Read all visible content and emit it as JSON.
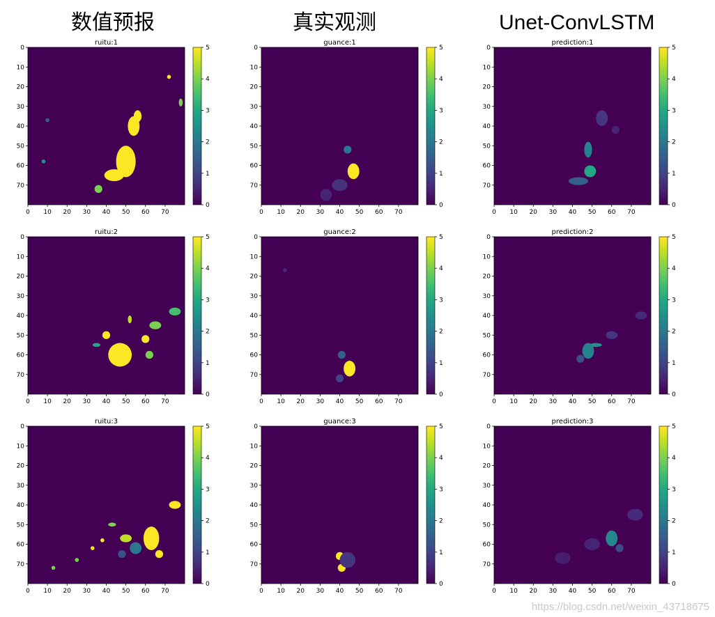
{
  "headers": [
    "数值预报",
    "真实观测",
    "Unet-ConvLSTM"
  ],
  "watermark": "https://blog.csdn.net/weixin_43718675",
  "colors": {
    "cmap": "viridis",
    "dark": "#440154",
    "bright": "#fde725"
  },
  "chart_data": [
    {
      "type": "heatmap",
      "title": "ruitu:1",
      "xticks": [
        0,
        10,
        20,
        30,
        40,
        50,
        60,
        70
      ],
      "yticks": [
        0,
        10,
        20,
        30,
        40,
        50,
        60,
        70
      ],
      "xlim": [
        0,
        80
      ],
      "ylim": [
        80,
        0
      ],
      "colorbar": {
        "min": 0,
        "max": 5,
        "ticks": [
          0,
          1,
          2,
          3,
          4,
          5
        ]
      },
      "blobs": [
        {
          "x": 50,
          "y": 58,
          "rx": 5,
          "ry": 8,
          "v": 5
        },
        {
          "x": 54,
          "y": 40,
          "rx": 3,
          "ry": 5,
          "v": 5
        },
        {
          "x": 44,
          "y": 65,
          "rx": 5,
          "ry": 3,
          "v": 5
        },
        {
          "x": 56,
          "y": 35,
          "rx": 2,
          "ry": 3,
          "v": 5
        },
        {
          "x": 36,
          "y": 72,
          "rx": 2,
          "ry": 2,
          "v": 4
        },
        {
          "x": 78,
          "y": 28,
          "rx": 1,
          "ry": 2,
          "v": 4
        },
        {
          "x": 72,
          "y": 15,
          "rx": 1,
          "ry": 1,
          "v": 5
        },
        {
          "x": 10,
          "y": 37,
          "rx": 1,
          "ry": 1,
          "v": 1.5
        },
        {
          "x": 8,
          "y": 58,
          "rx": 1,
          "ry": 1,
          "v": 2.5
        }
      ]
    },
    {
      "type": "heatmap",
      "title": "guance:1",
      "xticks": [
        0,
        10,
        20,
        30,
        40,
        50,
        60,
        70
      ],
      "yticks": [
        0,
        10,
        20,
        30,
        40,
        50,
        60,
        70
      ],
      "xlim": [
        0,
        80
      ],
      "ylim": [
        80,
        0
      ],
      "colorbar": {
        "min": 0,
        "max": 5,
        "ticks": [
          0,
          1,
          2,
          3,
          4,
          5
        ]
      },
      "blobs": [
        {
          "x": 47,
          "y": 63,
          "rx": 3,
          "ry": 4,
          "v": 5
        },
        {
          "x": 44,
          "y": 52,
          "rx": 2,
          "ry": 2,
          "v": 2
        },
        {
          "x": 40,
          "y": 70,
          "rx": 4,
          "ry": 3,
          "v": 0.7
        },
        {
          "x": 33,
          "y": 75,
          "rx": 3,
          "ry": 3,
          "v": 0.5
        }
      ]
    },
    {
      "type": "heatmap",
      "title": "prediction:1",
      "xticks": [
        0,
        10,
        20,
        30,
        40,
        50,
        60,
        70
      ],
      "yticks": [
        0,
        10,
        20,
        30,
        40,
        50,
        60,
        70
      ],
      "xlim": [
        0,
        80
      ],
      "ylim": [
        80,
        0
      ],
      "colorbar": {
        "min": 0,
        "max": 5,
        "ticks": [
          0,
          1,
          2,
          3,
          4,
          5
        ]
      },
      "blobs": [
        {
          "x": 49,
          "y": 63,
          "rx": 3,
          "ry": 3,
          "v": 3
        },
        {
          "x": 48,
          "y": 52,
          "rx": 2,
          "ry": 4,
          "v": 2.2
        },
        {
          "x": 43,
          "y": 68,
          "rx": 5,
          "ry": 2,
          "v": 1.5
        },
        {
          "x": 55,
          "y": 36,
          "rx": 3,
          "ry": 4,
          "v": 0.8
        },
        {
          "x": 62,
          "y": 42,
          "rx": 2,
          "ry": 2,
          "v": 0.5
        }
      ]
    },
    {
      "type": "heatmap",
      "title": "ruitu:2",
      "xticks": [
        0,
        10,
        20,
        30,
        40,
        50,
        60,
        70
      ],
      "yticks": [
        0,
        10,
        20,
        30,
        40,
        50,
        60,
        70
      ],
      "xlim": [
        0,
        80
      ],
      "ylim": [
        80,
        0
      ],
      "colorbar": {
        "min": 0,
        "max": 5,
        "ticks": [
          0,
          1,
          2,
          3,
          4,
          5
        ]
      },
      "blobs": [
        {
          "x": 47,
          "y": 60,
          "rx": 6,
          "ry": 6,
          "v": 5
        },
        {
          "x": 40,
          "y": 50,
          "rx": 2,
          "ry": 2,
          "v": 5
        },
        {
          "x": 60,
          "y": 52,
          "rx": 2,
          "ry": 2,
          "v": 5
        },
        {
          "x": 65,
          "y": 45,
          "rx": 3,
          "ry": 2,
          "v": 4
        },
        {
          "x": 75,
          "y": 38,
          "rx": 3,
          "ry": 2,
          "v": 3.5
        },
        {
          "x": 62,
          "y": 60,
          "rx": 2,
          "ry": 2,
          "v": 4
        },
        {
          "x": 52,
          "y": 42,
          "rx": 1,
          "ry": 2,
          "v": 4.5
        },
        {
          "x": 35,
          "y": 55,
          "rx": 2,
          "ry": 1,
          "v": 3
        }
      ]
    },
    {
      "type": "heatmap",
      "title": "guance:2",
      "xticks": [
        0,
        10,
        20,
        30,
        40,
        50,
        60,
        70
      ],
      "yticks": [
        0,
        10,
        20,
        30,
        40,
        50,
        60,
        70
      ],
      "xlim": [
        0,
        80
      ],
      "ylim": [
        80,
        0
      ],
      "colorbar": {
        "min": 0,
        "max": 5,
        "ticks": [
          0,
          1,
          2,
          3,
          4,
          5
        ]
      },
      "blobs": [
        {
          "x": 45,
          "y": 67,
          "rx": 3,
          "ry": 4,
          "v": 5
        },
        {
          "x": 41,
          "y": 60,
          "rx": 2,
          "ry": 2,
          "v": 1.5
        },
        {
          "x": 40,
          "y": 72,
          "rx": 2,
          "ry": 2,
          "v": 1
        },
        {
          "x": 12,
          "y": 17,
          "rx": 1,
          "ry": 1,
          "v": 0.6
        }
      ]
    },
    {
      "type": "heatmap",
      "title": "prediction:2",
      "xticks": [
        0,
        10,
        20,
        30,
        40,
        50,
        60,
        70
      ],
      "yticks": [
        0,
        10,
        20,
        30,
        40,
        50,
        60,
        70
      ],
      "xlim": [
        0,
        80
      ],
      "ylim": [
        80,
        0
      ],
      "colorbar": {
        "min": 0,
        "max": 5,
        "ticks": [
          0,
          1,
          2,
          3,
          4,
          5
        ]
      },
      "blobs": [
        {
          "x": 48,
          "y": 58,
          "rx": 3,
          "ry": 4,
          "v": 2.2
        },
        {
          "x": 52,
          "y": 55,
          "rx": 3,
          "ry": 1,
          "v": 2.5
        },
        {
          "x": 44,
          "y": 62,
          "rx": 2,
          "ry": 2,
          "v": 1.2
        },
        {
          "x": 60,
          "y": 50,
          "rx": 3,
          "ry": 2,
          "v": 0.8
        },
        {
          "x": 75,
          "y": 40,
          "rx": 3,
          "ry": 2,
          "v": 0.6
        }
      ]
    },
    {
      "type": "heatmap",
      "title": "ruitu:3",
      "xticks": [
        0,
        10,
        20,
        30,
        40,
        50,
        60,
        70
      ],
      "yticks": [
        0,
        10,
        20,
        30,
        40,
        50,
        60,
        70
      ],
      "xlim": [
        0,
        80
      ],
      "ylim": [
        80,
        0
      ],
      "colorbar": {
        "min": 0,
        "max": 5,
        "ticks": [
          0,
          1,
          2,
          3,
          4,
          5
        ]
      },
      "blobs": [
        {
          "x": 63,
          "y": 57,
          "rx": 4,
          "ry": 6,
          "v": 5
        },
        {
          "x": 75,
          "y": 40,
          "rx": 3,
          "ry": 2,
          "v": 5
        },
        {
          "x": 50,
          "y": 57,
          "rx": 3,
          "ry": 2,
          "v": 4.5
        },
        {
          "x": 43,
          "y": 50,
          "rx": 2,
          "ry": 1,
          "v": 4
        },
        {
          "x": 38,
          "y": 58,
          "rx": 1,
          "ry": 1,
          "v": 5
        },
        {
          "x": 33,
          "y": 62,
          "rx": 1,
          "ry": 1,
          "v": 5
        },
        {
          "x": 25,
          "y": 68,
          "rx": 1,
          "ry": 1,
          "v": 4
        },
        {
          "x": 13,
          "y": 72,
          "rx": 1,
          "ry": 1,
          "v": 4
        },
        {
          "x": 67,
          "y": 65,
          "rx": 2,
          "ry": 2,
          "v": 5
        },
        {
          "x": 55,
          "y": 62,
          "rx": 3,
          "ry": 3,
          "v": 2
        },
        {
          "x": 48,
          "y": 65,
          "rx": 2,
          "ry": 2,
          "v": 1.2
        }
      ]
    },
    {
      "type": "heatmap",
      "title": "guance:3",
      "xticks": [
        0,
        10,
        20,
        30,
        40,
        50,
        60,
        70
      ],
      "yticks": [
        0,
        10,
        20,
        30,
        40,
        50,
        60,
        70
      ],
      "xlim": [
        0,
        80
      ],
      "ylim": [
        80,
        0
      ],
      "colorbar": {
        "min": 0,
        "max": 5,
        "ticks": [
          0,
          1,
          2,
          3,
          4,
          5
        ]
      },
      "blobs": [
        {
          "x": 40,
          "y": 66,
          "rx": 2,
          "ry": 2,
          "v": 5
        },
        {
          "x": 41,
          "y": 72,
          "rx": 2,
          "ry": 2,
          "v": 5
        },
        {
          "x": 44,
          "y": 68,
          "rx": 4,
          "ry": 4,
          "v": 0.8
        }
      ]
    },
    {
      "type": "heatmap",
      "title": "prediction:3",
      "xticks": [
        0,
        10,
        20,
        30,
        40,
        50,
        60,
        70
      ],
      "yticks": [
        0,
        10,
        20,
        30,
        40,
        50,
        60,
        70
      ],
      "xlim": [
        0,
        80
      ],
      "ylim": [
        80,
        0
      ],
      "colorbar": {
        "min": 0,
        "max": 5,
        "ticks": [
          0,
          1,
          2,
          3,
          4,
          5
        ]
      },
      "blobs": [
        {
          "x": 60,
          "y": 57,
          "rx": 3,
          "ry": 4,
          "v": 2.3
        },
        {
          "x": 64,
          "y": 62,
          "rx": 2,
          "ry": 2,
          "v": 1.2
        },
        {
          "x": 72,
          "y": 45,
          "rx": 4,
          "ry": 3,
          "v": 0.6
        },
        {
          "x": 50,
          "y": 60,
          "rx": 4,
          "ry": 3,
          "v": 0.5
        },
        {
          "x": 35,
          "y": 67,
          "rx": 4,
          "ry": 3,
          "v": 0.4
        }
      ]
    }
  ]
}
